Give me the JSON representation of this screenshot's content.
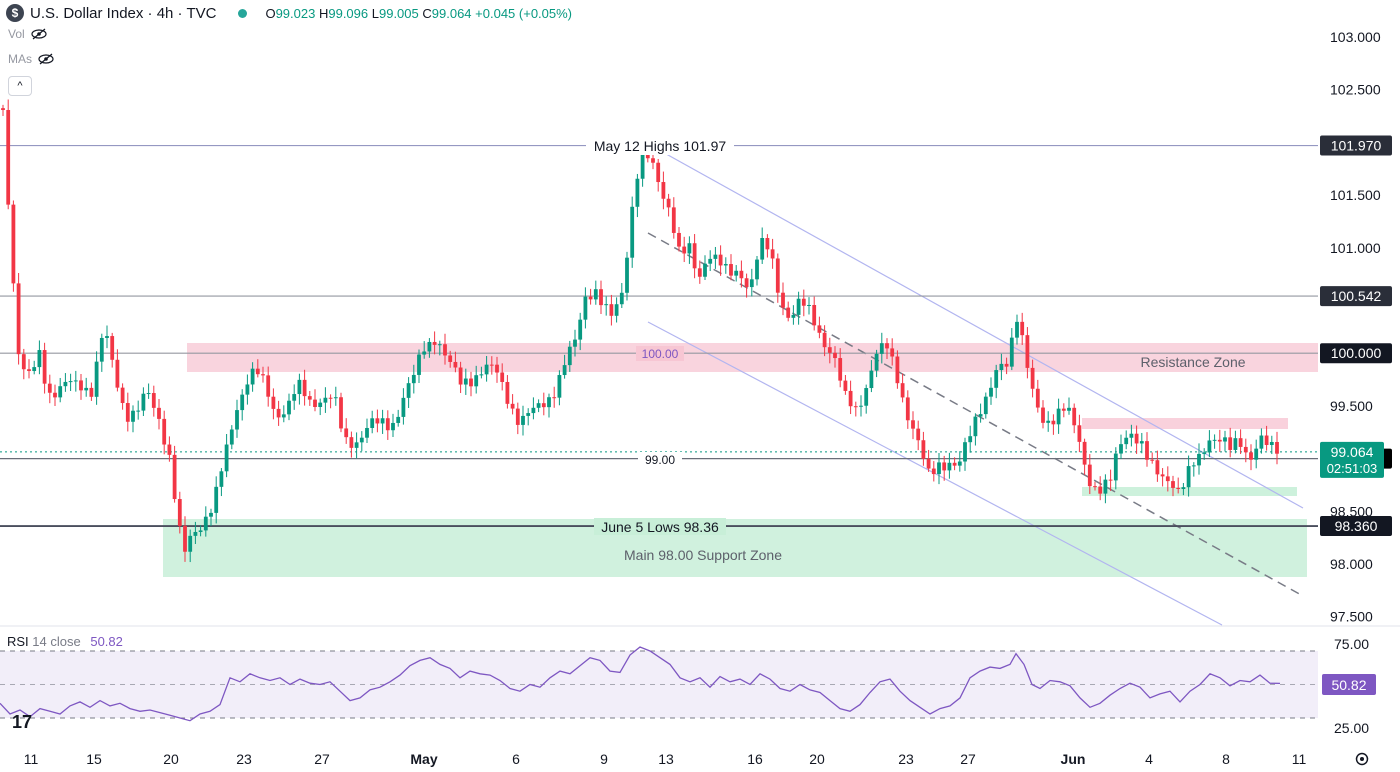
{
  "header": {
    "symbol_badge": "$",
    "title": "U.S. Dollar Index · 4h · TVC",
    "open_label": "O",
    "open": "99.023",
    "high_label": "H",
    "high": "99.096",
    "low_label": "L",
    "low": "99.005",
    "close_label": "C",
    "close": "99.064",
    "change": "+0.045 (+0.05%)"
  },
  "indicators": {
    "vol": "Vol",
    "mas": "MAs",
    "collapse": "^"
  },
  "rsi_header": {
    "name": "RSI",
    "params": "14 close",
    "value": "50.82"
  },
  "colors": {
    "up": "#089981",
    "down": "#f23645",
    "rsi": "#7e57c2",
    "channel": "#b2b5f0",
    "resistance": "#f7c6d3",
    "support": "#c8efd8"
  },
  "chart_data": {
    "type": "candlestick",
    "title": "U.S. Dollar Index · 4h · TVC",
    "y_axis_ticks": [
      97.5,
      98.0,
      98.5,
      99.0,
      99.5,
      100.0,
      100.5,
      101.0,
      101.5,
      102.0,
      102.5,
      103.0
    ],
    "y_tick_labels": [
      "97.500",
      "98.000",
      "98.500",
      "99.000",
      "99.500",
      "100.000",
      "100.500",
      "101.000",
      "101.500",
      "102.000",
      "102.500",
      "103.000"
    ],
    "ylim": [
      97.45,
      103.2
    ],
    "x_axis_labels": [
      "11",
      "15",
      "20",
      "23",
      "27",
      "May",
      "6",
      "9",
      "13",
      "16",
      "20",
      "23",
      "27",
      "Jun",
      "4",
      "8",
      "11"
    ],
    "price_path": [
      [
        0,
        102.75
      ],
      [
        6,
        101.9
      ],
      [
        12,
        100.85
      ],
      [
        20,
        99.8
      ],
      [
        30,
        99.75
      ],
      [
        40,
        100.05
      ],
      [
        48,
        99.65
      ],
      [
        58,
        99.6
      ],
      [
        70,
        99.7
      ],
      [
        80,
        99.75
      ],
      [
        92,
        99.65
      ],
      [
        104,
        100.2
      ],
      [
        114,
        99.85
      ],
      [
        126,
        99.45
      ],
      [
        136,
        99.4
      ],
      [
        148,
        99.6
      ],
      [
        160,
        99.4
      ],
      [
        170,
        99.0
      ],
      [
        178,
        98.35
      ],
      [
        184,
        98.05
      ],
      [
        192,
        98.3
      ],
      [
        204,
        98.45
      ],
      [
        214,
        98.55
      ],
      [
        224,
        98.95
      ],
      [
        236,
        99.5
      ],
      [
        246,
        99.75
      ],
      [
        256,
        99.8
      ],
      [
        266,
        99.65
      ],
      [
        276,
        99.45
      ],
      [
        288,
        99.5
      ],
      [
        298,
        99.65
      ],
      [
        310,
        99.55
      ],
      [
        322,
        99.6
      ],
      [
        334,
        99.55
      ],
      [
        344,
        99.15
      ],
      [
        356,
        99.2
      ],
      [
        368,
        99.3
      ],
      [
        380,
        99.3
      ],
      [
        392,
        99.35
      ],
      [
        404,
        99.6
      ],
      [
        414,
        99.75
      ],
      [
        424,
        100.05
      ],
      [
        436,
        100.2
      ],
      [
        448,
        99.9
      ],
      [
        460,
        99.7
      ],
      [
        472,
        99.8
      ],
      [
        484,
        99.85
      ],
      [
        496,
        99.8
      ],
      [
        508,
        99.6
      ],
      [
        520,
        99.35
      ],
      [
        532,
        99.4
      ],
      [
        544,
        99.55
      ],
      [
        556,
        99.7
      ],
      [
        566,
        99.9
      ],
      [
        576,
        100.1
      ],
      [
        584,
        100.55
      ],
      [
        594,
        100.65
      ],
      [
        604,
        100.4
      ],
      [
        612,
        100.3
      ],
      [
        622,
        100.6
      ],
      [
        632,
        101.4
      ],
      [
        640,
        101.85
      ],
      [
        650,
        101.8
      ],
      [
        660,
        101.6
      ],
      [
        670,
        101.4
      ],
      [
        680,
        100.9
      ],
      [
        690,
        100.95
      ],
      [
        698,
        100.7
      ],
      [
        708,
        101.0
      ],
      [
        716,
        100.9
      ],
      [
        728,
        100.7
      ],
      [
        740,
        100.8
      ],
      [
        750,
        100.65
      ],
      [
        760,
        101.0
      ],
      [
        770,
        100.95
      ],
      [
        780,
        100.55
      ],
      [
        790,
        100.35
      ],
      [
        800,
        100.45
      ],
      [
        812,
        100.35
      ],
      [
        824,
        100.15
      ],
      [
        834,
        99.95
      ],
      [
        844,
        99.55
      ],
      [
        856,
        99.5
      ],
      [
        866,
        99.7
      ],
      [
        876,
        99.95
      ],
      [
        888,
        100.05
      ],
      [
        898,
        99.8
      ],
      [
        908,
        99.4
      ],
      [
        918,
        99.1
      ],
      [
        928,
        98.85
      ],
      [
        938,
        99.0
      ],
      [
        948,
        98.95
      ],
      [
        958,
        98.85
      ],
      [
        968,
        99.2
      ],
      [
        978,
        99.5
      ],
      [
        988,
        99.6
      ],
      [
        998,
        99.8
      ],
      [
        1008,
        99.9
      ],
      [
        1016,
        100.45
      ],
      [
        1024,
        100.1
      ],
      [
        1032,
        99.6
      ],
      [
        1042,
        99.3
      ],
      [
        1052,
        99.4
      ],
      [
        1062,
        99.55
      ],
      [
        1072,
        99.35
      ],
      [
        1082,
        99.0
      ],
      [
        1090,
        98.8
      ],
      [
        1100,
        98.75
      ],
      [
        1110,
        98.75
      ],
      [
        1120,
        99.1
      ],
      [
        1130,
        99.3
      ],
      [
        1140,
        99.2
      ],
      [
        1150,
        98.9
      ],
      [
        1160,
        98.8
      ],
      [
        1170,
        98.85
      ],
      [
        1180,
        98.7
      ],
      [
        1190,
        98.85
      ],
      [
        1200,
        99.0
      ],
      [
        1210,
        99.25
      ],
      [
        1220,
        99.2
      ],
      [
        1230,
        99.05
      ],
      [
        1240,
        99.15
      ],
      [
        1250,
        99.05
      ],
      [
        1260,
        99.2
      ],
      [
        1270,
        99.05
      ],
      [
        1280,
        99.064
      ]
    ],
    "horizontal_levels": [
      {
        "price": 101.97,
        "label": "May 12 Highs 101.97",
        "tag": "101.970"
      },
      {
        "price": 100.542,
        "label": "",
        "tag": "100.542"
      },
      {
        "price": 100.0,
        "label": "100.00",
        "tag": "100.000"
      },
      {
        "price": 99.0,
        "label": "99.00",
        "tag": "99.000"
      },
      {
        "price": 98.36,
        "label": "June 5 Lows 98.36",
        "tag": "98.360"
      }
    ],
    "zones": [
      {
        "name": "Resistance Zone",
        "from": 99.85,
        "to": 100.12
      },
      {
        "name": "Main 98.00 Support Zone",
        "from": 97.9,
        "to": 98.42
      },
      {
        "name": "",
        "from": 99.32,
        "to": 99.42
      },
      {
        "name": "",
        "from": 98.73,
        "to": 98.81
      }
    ],
    "last_price": {
      "value": "99.064",
      "countdown": "02:51:03"
    },
    "rsi": {
      "levels": [
        75.0,
        50.0,
        25.0
      ],
      "level_labels": [
        "75.00",
        "25.00"
      ],
      "current": "50.82",
      "path": [
        [
          0,
          36
        ],
        [
          10,
          28
        ],
        [
          20,
          31
        ],
        [
          30,
          26
        ],
        [
          40,
          32
        ],
        [
          50,
          30
        ],
        [
          60,
          28
        ],
        [
          70,
          34
        ],
        [
          80,
          37
        ],
        [
          90,
          33
        ],
        [
          100,
          38
        ],
        [
          110,
          34
        ],
        [
          120,
          36
        ],
        [
          130,
          32
        ],
        [
          140,
          30
        ],
        [
          150,
          31
        ],
        [
          160,
          29
        ],
        [
          170,
          27
        ],
        [
          180,
          25
        ],
        [
          190,
          23
        ],
        [
          200,
          28
        ],
        [
          210,
          30
        ],
        [
          220,
          35
        ],
        [
          230,
          55
        ],
        [
          240,
          52
        ],
        [
          250,
          58
        ],
        [
          260,
          55
        ],
        [
          270,
          53
        ],
        [
          280,
          55
        ],
        [
          290,
          50
        ],
        [
          300,
          54
        ],
        [
          310,
          51
        ],
        [
          320,
          50
        ],
        [
          330,
          52
        ],
        [
          340,
          45
        ],
        [
          350,
          38
        ],
        [
          360,
          40
        ],
        [
          370,
          46
        ],
        [
          380,
          48
        ],
        [
          390,
          52
        ],
        [
          400,
          57
        ],
        [
          410,
          64
        ],
        [
          420,
          68
        ],
        [
          430,
          70
        ],
        [
          440,
          65
        ],
        [
          450,
          62
        ],
        [
          460,
          55
        ],
        [
          470,
          60
        ],
        [
          480,
          58
        ],
        [
          490,
          57
        ],
        [
          500,
          53
        ],
        [
          510,
          47
        ],
        [
          520,
          45
        ],
        [
          530,
          50
        ],
        [
          540,
          48
        ],
        [
          550,
          55
        ],
        [
          560,
          60
        ],
        [
          570,
          58
        ],
        [
          580,
          64
        ],
        [
          590,
          70
        ],
        [
          600,
          68
        ],
        [
          610,
          60
        ],
        [
          620,
          59
        ],
        [
          630,
          72
        ],
        [
          640,
          78
        ],
        [
          650,
          75
        ],
        [
          660,
          70
        ],
        [
          670,
          65
        ],
        [
          680,
          55
        ],
        [
          690,
          52
        ],
        [
          700,
          55
        ],
        [
          710,
          48
        ],
        [
          720,
          56
        ],
        [
          730,
          52
        ],
        [
          740,
          54
        ],
        [
          750,
          50
        ],
        [
          760,
          58
        ],
        [
          770,
          54
        ],
        [
          780,
          47
        ],
        [
          790,
          45
        ],
        [
          800,
          50
        ],
        [
          810,
          46
        ],
        [
          820,
          44
        ],
        [
          830,
          38
        ],
        [
          840,
          32
        ],
        [
          850,
          30
        ],
        [
          860,
          35
        ],
        [
          870,
          44
        ],
        [
          880,
          52
        ],
        [
          890,
          54
        ],
        [
          900,
          45
        ],
        [
          910,
          38
        ],
        [
          920,
          33
        ],
        [
          930,
          28
        ],
        [
          940,
          32
        ],
        [
          950,
          34
        ],
        [
          960,
          40
        ],
        [
          970,
          55
        ],
        [
          980,
          60
        ],
        [
          990,
          63
        ],
        [
          1000,
          62
        ],
        [
          1010,
          65
        ],
        [
          1016,
          73
        ],
        [
          1024,
          65
        ],
        [
          1032,
          50
        ],
        [
          1040,
          47
        ],
        [
          1050,
          53
        ],
        [
          1060,
          52
        ],
        [
          1070,
          49
        ],
        [
          1080,
          40
        ],
        [
          1090,
          33
        ],
        [
          1100,
          36
        ],
        [
          1110,
          42
        ],
        [
          1120,
          47
        ],
        [
          1130,
          51
        ],
        [
          1140,
          48
        ],
        [
          1150,
          40
        ],
        [
          1160,
          43
        ],
        [
          1170,
          45
        ],
        [
          1180,
          37
        ],
        [
          1190,
          45
        ],
        [
          1200,
          50
        ],
        [
          1210,
          58
        ],
        [
          1220,
          55
        ],
        [
          1230,
          49
        ],
        [
          1240,
          53
        ],
        [
          1250,
          52
        ],
        [
          1260,
          57
        ],
        [
          1270,
          51
        ],
        [
          1280,
          50.82
        ]
      ]
    }
  }
}
